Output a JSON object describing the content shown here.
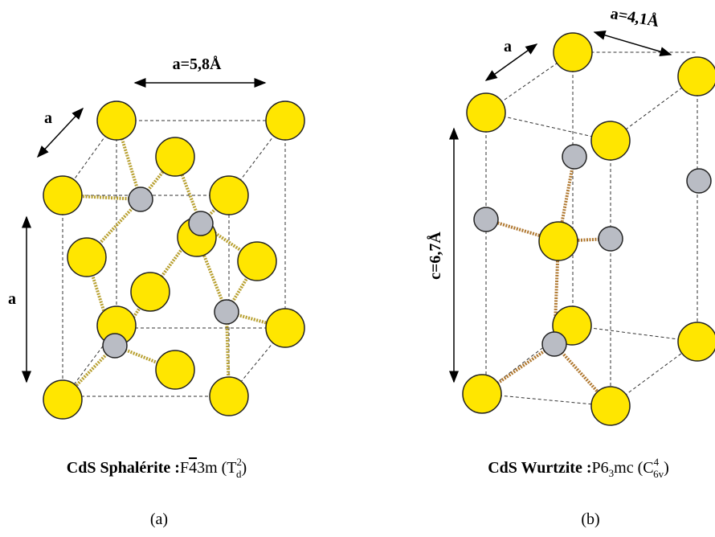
{
  "panels": [
    {
      "dimension_labels": {
        "width": "a=5,8Å",
        "depth": "a",
        "height": "a"
      },
      "name": "CdS Sphalérite",
      "separator": ":",
      "space_group": {
        "prefix": "F",
        "overlined": "4",
        "suffix": "3m"
      },
      "schoenflies": {
        "open": "(",
        "symbol": "T",
        "superscript": "2",
        "subscript": "d",
        "close": ")"
      },
      "caption": "(a)"
    },
    {
      "dimension_labels": {
        "width": "a=4,1Å",
        "depth": "a",
        "height": "c=6,7Å"
      },
      "name": "CdS Wurtzite",
      "separator": ":",
      "space_group": {
        "prefix": "P6",
        "subscript": "3",
        "suffix": "mc"
      },
      "schoenflies": {
        "open": "(",
        "symbol": "C",
        "superscript": "4",
        "subscript": "6v",
        "close": ")"
      },
      "caption": "(b)"
    }
  ]
}
